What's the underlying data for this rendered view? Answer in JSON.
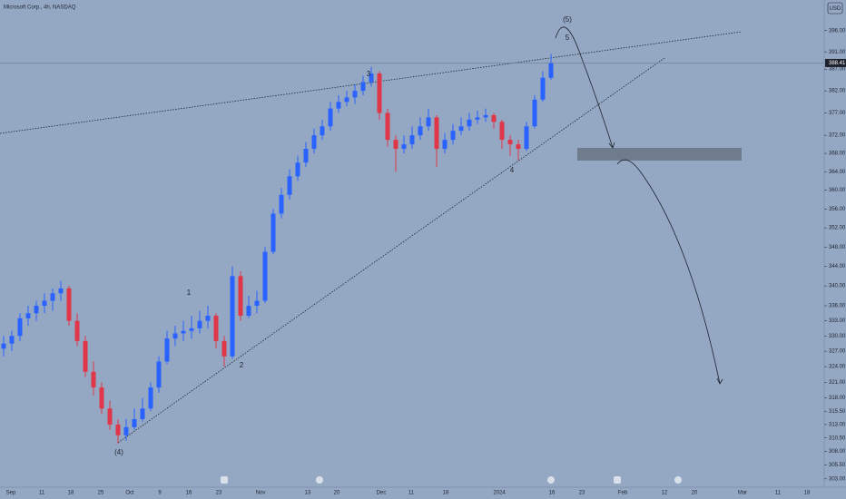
{
  "chart_data": {
    "type": "candlestick",
    "title": "Microsoft Corp., 4h, NASDAQ",
    "currency": "USD",
    "log_scale": true,
    "up_color": "#2962ff",
    "down_color": "#e0364a",
    "ylim": [
      301.5,
      403.3
    ],
    "yticks": [
      {
        "value": 396,
        "label": "396.00"
      },
      {
        "value": 391,
        "label": "391.00"
      },
      {
        "value": 387,
        "label": "387.00"
      },
      {
        "value": 382,
        "label": "382.00"
      },
      {
        "value": 377,
        "label": "377.00"
      },
      {
        "value": 372,
        "label": "372.00"
      },
      {
        "value": 368,
        "label": "368.00"
      },
      {
        "value": 364,
        "label": "364.00"
      },
      {
        "value": 360,
        "label": "360.00"
      },
      {
        "value": 356,
        "label": "356.00"
      },
      {
        "value": 352,
        "label": "352.00"
      },
      {
        "value": 348,
        "label": "348.00"
      },
      {
        "value": 344,
        "label": "344.00"
      },
      {
        "value": 340,
        "label": "340.00"
      },
      {
        "value": 336,
        "label": "336.00"
      },
      {
        "value": 333,
        "label": "333.00"
      },
      {
        "value": 330,
        "label": "330.00"
      },
      {
        "value": 327,
        "label": "327.00"
      },
      {
        "value": 324,
        "label": "324.00"
      },
      {
        "value": 321,
        "label": "321.00"
      },
      {
        "value": 318,
        "label": "318.00"
      },
      {
        "value": 315.5,
        "label": "315.50"
      },
      {
        "value": 313,
        "label": "313.00"
      },
      {
        "value": 310.5,
        "label": "310.50"
      },
      {
        "value": 308,
        "label": "308.00"
      },
      {
        "value": 305.5,
        "label": "305.50"
      },
      {
        "value": 303,
        "label": "303.00"
      }
    ],
    "last_price": 388.41,
    "x_labels": [
      "Sep",
      "11",
      "18",
      "25",
      "Oct",
      "9",
      "16",
      "23",
      "Nov",
      "13",
      "20",
      "Dec",
      "11",
      "18",
      "2024",
      "16",
      "23",
      "Feb",
      "12",
      "20",
      "Mar",
      "11",
      "18"
    ],
    "annotations": [
      "(4)",
      "1",
      "2",
      "3",
      "4",
      "5",
      "(5)"
    ],
    "ohlc": [
      [
        327.5,
        330,
        326,
        328.5
      ],
      [
        328.5,
        331,
        327,
        330
      ],
      [
        330,
        334.5,
        329,
        333.5
      ],
      [
        333.5,
        336,
        332,
        334.5
      ],
      [
        334.5,
        337,
        333,
        336
      ],
      [
        336,
        338.5,
        334.5,
        337
      ],
      [
        337,
        339.5,
        335,
        338.5
      ],
      [
        338.5,
        341,
        337,
        339.5
      ],
      [
        339.5,
        340,
        332,
        333
      ],
      [
        333,
        334.5,
        328,
        329
      ],
      [
        329,
        330,
        322,
        323
      ],
      [
        323,
        325,
        318.5,
        320
      ],
      [
        320,
        321,
        315,
        316
      ],
      [
        316,
        317.5,
        312,
        313
      ],
      [
        313,
        314,
        309.5,
        311
      ],
      [
        311,
        314,
        310,
        312.5
      ],
      [
        312.5,
        316,
        312,
        314
      ],
      [
        314,
        318,
        313.5,
        316
      ],
      [
        316,
        321,
        315.5,
        320
      ],
      [
        320,
        326,
        319,
        325
      ],
      [
        325,
        331,
        324.5,
        329.5
      ],
      [
        329.5,
        332,
        328,
        330.5
      ],
      [
        330.5,
        333,
        329,
        331
      ],
      [
        331,
        334,
        329.5,
        331.5
      ],
      [
        331.5,
        335,
        330.5,
        333
      ],
      [
        333,
        336,
        331.5,
        334
      ],
      [
        334,
        334.5,
        327.5,
        329
      ],
      [
        329,
        330,
        324,
        326
      ],
      [
        326,
        344,
        325.5,
        342
      ],
      [
        342,
        343,
        333,
        334
      ],
      [
        334,
        338,
        333.5,
        336
      ],
      [
        336,
        339,
        334.5,
        337
      ],
      [
        337,
        348,
        336.5,
        347
      ],
      [
        347,
        356,
        346.5,
        355
      ],
      [
        355,
        360.5,
        354,
        359
      ],
      [
        359,
        364.5,
        358,
        363
      ],
      [
        363,
        367.5,
        362,
        366
      ],
      [
        366,
        370.5,
        365,
        369
      ],
      [
        369,
        373.5,
        368,
        372
      ],
      [
        372,
        375.5,
        371,
        374
      ],
      [
        374,
        379.5,
        373,
        378
      ],
      [
        378,
        381,
        377,
        379.5
      ],
      [
        379.5,
        382,
        378.5,
        380.5
      ],
      [
        380.5,
        383.5,
        379,
        382
      ],
      [
        382,
        385.5,
        381,
        384
      ],
      [
        384,
        387.5,
        383,
        386
      ],
      [
        386,
        386.5,
        375.5,
        377
      ],
      [
        377,
        378,
        369.5,
        371
      ],
      [
        371,
        372,
        364,
        369
      ],
      [
        369,
        372,
        368,
        370
      ],
      [
        370,
        374,
        369,
        372
      ],
      [
        372,
        376,
        371,
        374
      ],
      [
        374,
        378,
        373,
        376
      ],
      [
        376,
        376.5,
        365,
        369
      ],
      [
        369,
        372.5,
        368,
        371
      ],
      [
        371,
        374.5,
        370,
        373
      ],
      [
        373,
        376,
        372,
        374
      ],
      [
        374,
        377,
        373,
        375.5
      ],
      [
        375.5,
        377.5,
        374.5,
        376
      ],
      [
        376,
        378,
        375,
        376.5
      ],
      [
        376.5,
        377,
        373.5,
        375
      ],
      [
        375,
        375.5,
        369,
        371
      ],
      [
        371,
        372,
        367.5,
        370
      ],
      [
        370,
        371,
        366.5,
        369
      ],
      [
        369,
        375,
        368.5,
        374
      ],
      [
        374,
        381,
        373.5,
        380
      ],
      [
        380,
        386.5,
        379.5,
        385
      ],
      [
        385,
        390.5,
        384.5,
        388.41
      ]
    ]
  }
}
